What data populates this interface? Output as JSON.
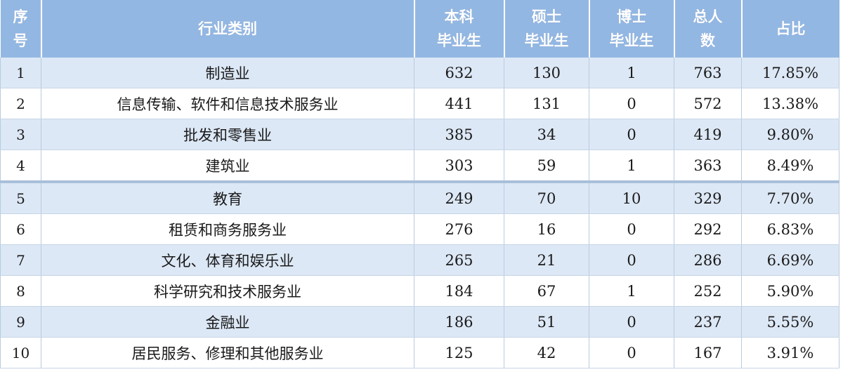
{
  "table": {
    "headers": [
      {
        "lines": [
          "序",
          "号"
        ]
      },
      {
        "lines": [
          "行业类别"
        ]
      },
      {
        "lines": [
          "本科",
          "毕业生"
        ]
      },
      {
        "lines": [
          "硕士",
          "毕业生"
        ]
      },
      {
        "lines": [
          "博士",
          "毕业生"
        ]
      },
      {
        "lines": [
          "总人",
          "数"
        ]
      },
      {
        "lines": [
          "占比"
        ]
      }
    ],
    "rows": [
      [
        "1",
        "制造业",
        "632",
        "130",
        "1",
        "763",
        "17.85%"
      ],
      [
        "2",
        "信息传输、软件和信息技术服务业",
        "441",
        "131",
        "0",
        "572",
        "13.38%"
      ],
      [
        "3",
        "批发和零售业",
        "385",
        "34",
        "0",
        "419",
        "9.80%"
      ],
      [
        "4",
        "建筑业",
        "303",
        "59",
        "1",
        "363",
        "8.49%"
      ],
      [
        "5",
        "教育",
        "249",
        "70",
        "10",
        "329",
        "7.70%"
      ],
      [
        "6",
        "租赁和商务服务业",
        "276",
        "16",
        "0",
        "292",
        "6.83%"
      ],
      [
        "7",
        "文化、体育和娱乐业",
        "265",
        "21",
        "0",
        "286",
        "6.69%"
      ],
      [
        "8",
        "科学研究和技术服务业",
        "184",
        "67",
        "1",
        "252",
        "5.90%"
      ],
      [
        "9",
        "金融业",
        "186",
        "51",
        "0",
        "237",
        "5.55%"
      ],
      [
        "10",
        "居民服务、修理和其他服务业",
        "125",
        "42",
        "0",
        "167",
        "3.91%"
      ]
    ]
  },
  "colors": {
    "header_bg": "#93b7e3",
    "header_text": "#ffffff",
    "row_alt_bg": "#dde8f6",
    "border": "#b9cbe0"
  }
}
